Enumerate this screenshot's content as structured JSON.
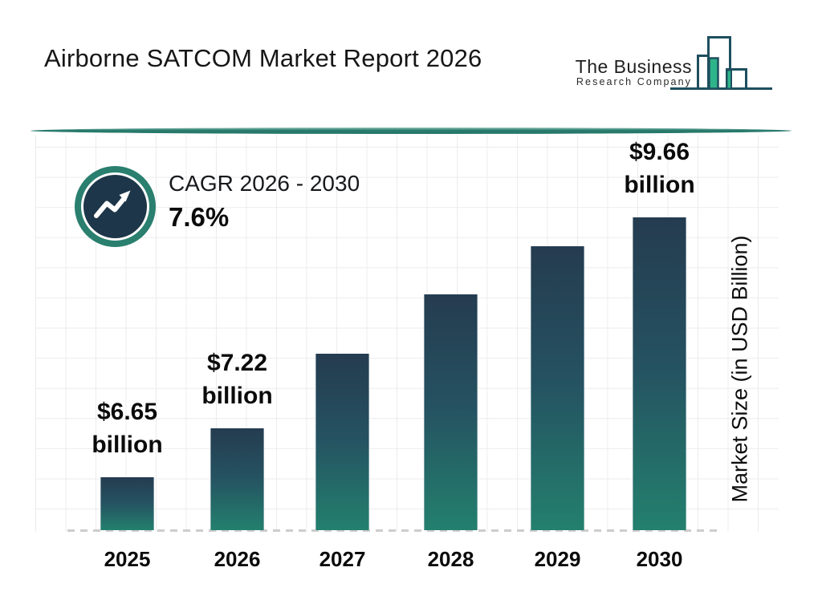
{
  "header": {
    "title": "Airborne SATCOM Market Report 2026",
    "logo": {
      "name": "The Business",
      "subtitle": "Research Company"
    }
  },
  "cagr": {
    "label": "CAGR 2026 - 2030",
    "value": "7.6%"
  },
  "chart_data": {
    "type": "bar",
    "title": "Airborne SATCOM Market Report 2026",
    "categories": [
      "2025",
      "2026",
      "2027",
      "2028",
      "2029",
      "2030"
    ],
    "values": [
      6.65,
      7.22,
      8.08,
      8.77,
      9.33,
      9.66
    ],
    "bar_labels": [
      {
        "amount": "$6.65",
        "unit": "billion"
      },
      {
        "amount": "$7.22",
        "unit": "billion"
      },
      null,
      null,
      null,
      {
        "amount": "$9.66",
        "unit": "billion"
      }
    ],
    "xlabel": "",
    "ylabel": "Market Size (in USD Billion)",
    "ylim": [
      6.04,
      9.66
    ],
    "grid": true,
    "legend": false,
    "annotation": "CAGR 2026 - 2030: 7.6%"
  },
  "colors": {
    "bar_gradient_top": "#253c50",
    "bar_gradient_bottom": "#23806e",
    "badge_ring": "#2a7f6f",
    "badge_fill": "#1d3649",
    "divider": "#27796a",
    "logo_outline": "#1e4f5e",
    "logo_green": "#2eb48a",
    "grid_line": "#ececec",
    "baseline_dash": "#cdcdcd"
  }
}
